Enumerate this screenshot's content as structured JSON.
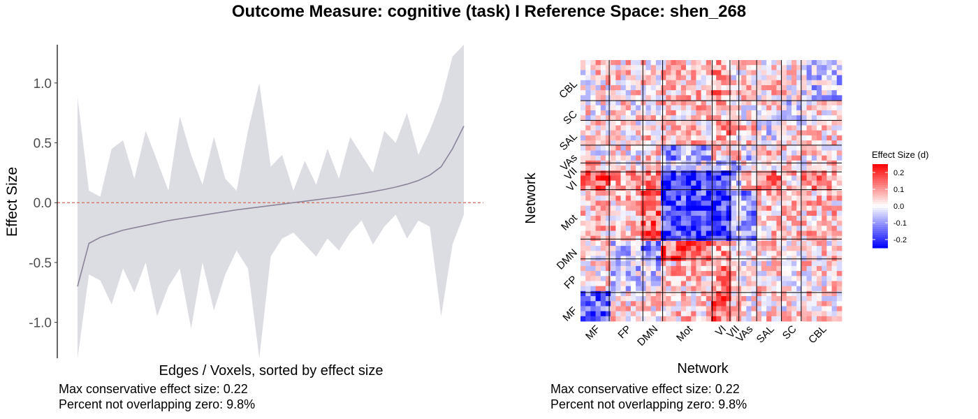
{
  "title": "Outcome Measure: cognitive (task)   I  Reference Space: shen_268",
  "left_panel": {
    "stats": [
      "Max conservative effect size: 0.22",
      "Percent not overlapping zero: 9.8%"
    ]
  },
  "right_panel": {
    "stats": [
      "Max conservative effect size: 0.22",
      "Percent not overlapping zero: 9.8%"
    ]
  },
  "colors": {
    "ci_band": "#dcdce3",
    "line": "#8b8499",
    "zero_line": "#d26a5a",
    "heatmap_low": "#0000ff",
    "heatmap_mid": "#ffffff",
    "heatmap_high": "#ff0000"
  },
  "chart_data": [
    {
      "type": "line",
      "xlabel": "Edges / Voxels, sorted by effect size",
      "ylabel": "Effect Size",
      "ylim": [
        -1.3,
        1.32
      ],
      "yticks": [
        1.0,
        0.5,
        0.0,
        -0.5,
        -1.0
      ],
      "ytick_labels": [
        "1.0",
        "0.5",
        "0.0",
        "-0.5",
        "-1.0"
      ],
      "reference_line": {
        "y": 0,
        "style": "dashed"
      },
      "series": [
        {
          "values": [
            -0.7,
            -0.34,
            -0.29,
            -0.26,
            -0.23,
            -0.21,
            -0.19,
            -0.17,
            -0.15,
            -0.135,
            -0.12,
            -0.105,
            -0.09,
            -0.075,
            -0.06,
            -0.048,
            -0.036,
            -0.024,
            -0.012,
            0.0,
            0.012,
            0.024,
            0.036,
            0.048,
            0.062,
            0.076,
            0.092,
            0.11,
            0.13,
            0.155,
            0.185,
            0.23,
            0.3,
            0.45,
            0.64
          ]
        }
      ],
      "ci_upper": [
        0.88,
        0.1,
        0.05,
        0.45,
        0.52,
        0.2,
        0.6,
        0.35,
        0.1,
        0.72,
        0.4,
        0.15,
        0.55,
        0.2,
        0.1,
        0.6,
        1.0,
        0.3,
        0.4,
        0.1,
        0.35,
        0.15,
        0.45,
        0.2,
        0.55,
        0.4,
        0.25,
        0.6,
        0.5,
        0.75,
        0.4,
        0.6,
        0.85,
        1.22,
        1.32
      ],
      "ci_lower": [
        -1.3,
        -0.6,
        -0.65,
        -0.85,
        -0.55,
        -0.75,
        -0.5,
        -0.95,
        -0.7,
        -0.55,
        -1.05,
        -0.5,
        -0.9,
        -0.6,
        -0.4,
        -0.55,
        -1.3,
        -0.45,
        -0.3,
        -0.25,
        -0.35,
        -0.45,
        -0.3,
        -0.4,
        -0.25,
        -0.15,
        -0.35,
        -0.2,
        -0.1,
        -0.3,
        -0.15,
        -0.2,
        -0.95,
        -0.35,
        -0.1
      ]
    },
    {
      "type": "heatmap",
      "xlabel": "Network",
      "ylabel": "Network",
      "x_tick_labels": [
        "MF",
        "FP",
        "DMN",
        "Mot",
        "VI",
        "VII",
        "VAs",
        "SAL",
        "SC",
        "CBL"
      ],
      "y_tick_labels": [
        "CBL",
        "SC",
        "SAL",
        "VAs",
        "VII",
        "VI",
        "Mot",
        "DMN",
        "FP",
        "MF"
      ],
      "networks": [
        "MF",
        "FP",
        "DMN",
        "Mot",
        "VI",
        "VII",
        "VAs",
        "SAL",
        "SC",
        "CBL"
      ],
      "network_sizes": [
        29,
        34,
        20,
        50,
        18,
        9,
        18,
        25,
        20,
        41
      ],
      "block_means": [
        [
          -0.15,
          0.02,
          0.03,
          0.05,
          0.15,
          0.05,
          0.02,
          0.03,
          0.02,
          0.03
        ],
        [
          0.02,
          -0.05,
          -0.05,
          0.05,
          0.1,
          0.03,
          0.02,
          0.02,
          0.02,
          0.03
        ],
        [
          0.03,
          -0.05,
          -0.12,
          0.15,
          0.1,
          0.05,
          0.03,
          0.05,
          0.03,
          0.03
        ],
        [
          0.05,
          0.05,
          0.15,
          -0.18,
          -0.2,
          -0.05,
          -0.1,
          0.05,
          0.05,
          0.05
        ],
        [
          0.15,
          0.1,
          0.1,
          -0.2,
          -0.2,
          -0.05,
          0.05,
          0.1,
          0.05,
          0.1
        ],
        [
          0.05,
          0.03,
          0.05,
          -0.05,
          -0.05,
          -0.05,
          0.05,
          0.05,
          0.03,
          0.03
        ],
        [
          0.02,
          0.02,
          0.03,
          -0.1,
          0.05,
          0.05,
          -0.05,
          0.05,
          0.03,
          0.03
        ],
        [
          0.03,
          0.02,
          0.05,
          0.05,
          0.1,
          0.05,
          0.05,
          -0.03,
          0.02,
          0.03
        ],
        [
          0.02,
          0.02,
          0.03,
          0.05,
          0.05,
          0.03,
          0.03,
          0.02,
          -0.05,
          0.02
        ],
        [
          0.03,
          0.03,
          0.03,
          0.05,
          0.1,
          0.03,
          0.03,
          0.03,
          0.02,
          -0.05
        ]
      ],
      "legend": {
        "title": "Effect Size (d)",
        "ticks": [
          0.2,
          0.1,
          0.0,
          -0.1,
          -0.2
        ],
        "tick_labels": [
          "0.2",
          "0.1",
          "0.0",
          "-0.1",
          "-0.2"
        ],
        "range": [
          -0.25,
          0.25
        ]
      }
    }
  ]
}
